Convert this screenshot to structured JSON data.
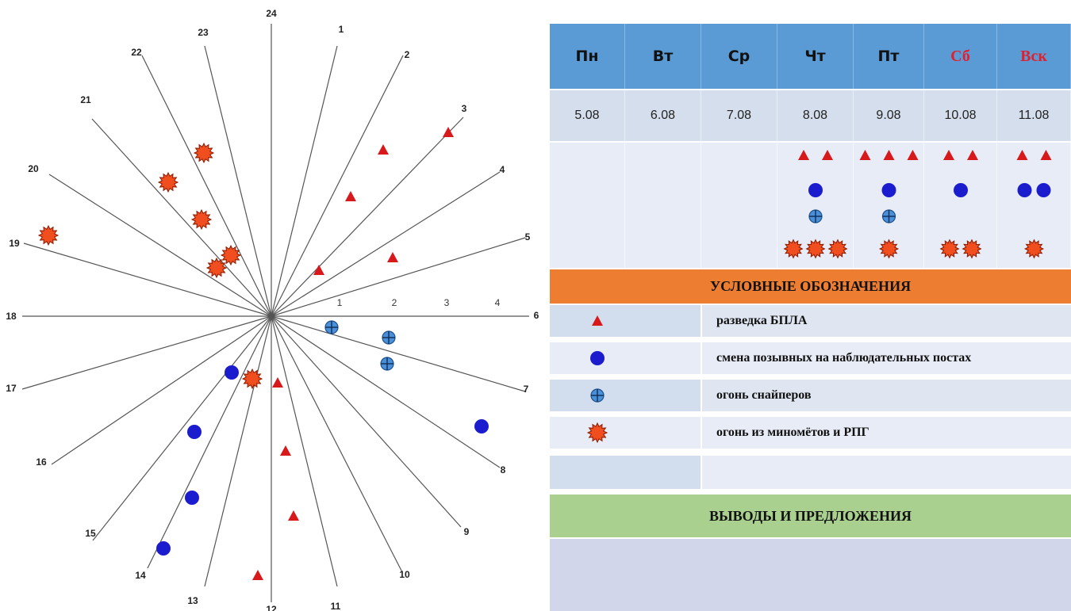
{
  "diagram": {
    "direction_labels": [
      "1",
      "2",
      "3",
      "4",
      "5",
      "6",
      "7",
      "8",
      "9",
      "10",
      "11",
      "12",
      "13",
      "14",
      "15",
      "16",
      "17",
      "18",
      "19",
      "20",
      "21",
      "22",
      "23",
      "24"
    ],
    "scale_labels": [
      "1",
      "2",
      "3",
      "4"
    ],
    "markers": [
      {
        "type": "uav",
        "label": "разведка БПЛА"
      },
      {
        "type": "uav",
        "label": "разведка БПЛА"
      },
      {
        "type": "uav",
        "label": "разведка БПЛА"
      },
      {
        "type": "uav",
        "label": "разведка БПЛА"
      },
      {
        "type": "uav",
        "label": "разведка БПЛА"
      },
      {
        "type": "uav",
        "label": "разведка БПЛА"
      },
      {
        "type": "uav",
        "label": "разведка БПЛА"
      },
      {
        "type": "uav",
        "label": "разведка БПЛА"
      },
      {
        "type": "uav",
        "label": "разведка БПЛА"
      },
      {
        "type": "callsign",
        "label": "смена позывных"
      },
      {
        "type": "callsign",
        "label": "смена позывных"
      },
      {
        "type": "callsign",
        "label": "смена позывных"
      },
      {
        "type": "callsign",
        "label": "смена позывных"
      },
      {
        "type": "callsign",
        "label": "смена позывных"
      },
      {
        "type": "sniper",
        "label": "огонь снайперов"
      },
      {
        "type": "sniper",
        "label": "огонь снайперов"
      },
      {
        "type": "sniper",
        "label": "огонь снайперов"
      },
      {
        "type": "mortar",
        "label": "огонь из миномётов"
      },
      {
        "type": "mortar",
        "label": "огонь из миномётов"
      },
      {
        "type": "mortar",
        "label": "огонь из миномётов"
      },
      {
        "type": "mortar",
        "label": "огонь из миномётов"
      },
      {
        "type": "mortar",
        "label": "огонь из миномётов"
      },
      {
        "type": "mortar",
        "label": "огонь из миномётов"
      },
      {
        "type": "mortar",
        "label": "огонь из миномётов"
      }
    ]
  },
  "table": {
    "days": [
      {
        "label": "Пн",
        "date": "5.08",
        "weekend": false,
        "uav": 0,
        "callsign": 0,
        "sniper": 0,
        "mortar": 0
      },
      {
        "label": "Вт",
        "date": "6.08",
        "weekend": false,
        "uav": 0,
        "callsign": 0,
        "sniper": 0,
        "mortar": 0
      },
      {
        "label": "Ср",
        "date": "7.08",
        "weekend": false,
        "uav": 0,
        "callsign": 0,
        "sniper": 0,
        "mortar": 0
      },
      {
        "label": "Чт",
        "date": "8.08",
        "weekend": false,
        "uav": 2,
        "callsign": 1,
        "sniper": 1,
        "mortar": 3
      },
      {
        "label": "Пт",
        "date": "9.08",
        "weekend": false,
        "uav": 3,
        "callsign": 1,
        "sniper": 1,
        "mortar": 1
      },
      {
        "label": "Сб",
        "date": "10.08",
        "weekend": true,
        "uav": 2,
        "callsign": 1,
        "sniper": 0,
        "mortar": 2
      },
      {
        "label": "Вск",
        "date": "11.08",
        "weekend": true,
        "uav": 2,
        "callsign": 2,
        "sniper": 0,
        "mortar": 1
      }
    ],
    "legend_title": "УСЛОВНЫЕ ОБОЗНАЧЕНИЯ",
    "legend": [
      {
        "type": "uav",
        "text": "разведка БПЛА"
      },
      {
        "type": "callsign",
        "text": "смена позывных на наблюдательных постах"
      },
      {
        "type": "sniper",
        "text": "огонь снайперов"
      },
      {
        "type": "mortar",
        "text": "огонь из миномётов и РПГ"
      }
    ],
    "conclusions_title": "ВЫВОДЫ И ПРЕДЛОЖЕНИЯ"
  },
  "colors": {
    "header_blue": "#5b9bd5",
    "legend_orange": "#ed7d31",
    "conclusions_green": "#a9d08e",
    "uav_red": "#d7191c",
    "callsign_blue": "#1c1ccf",
    "sniper_blue": "#4a90d9",
    "mortar_red": "#f04e1e"
  }
}
